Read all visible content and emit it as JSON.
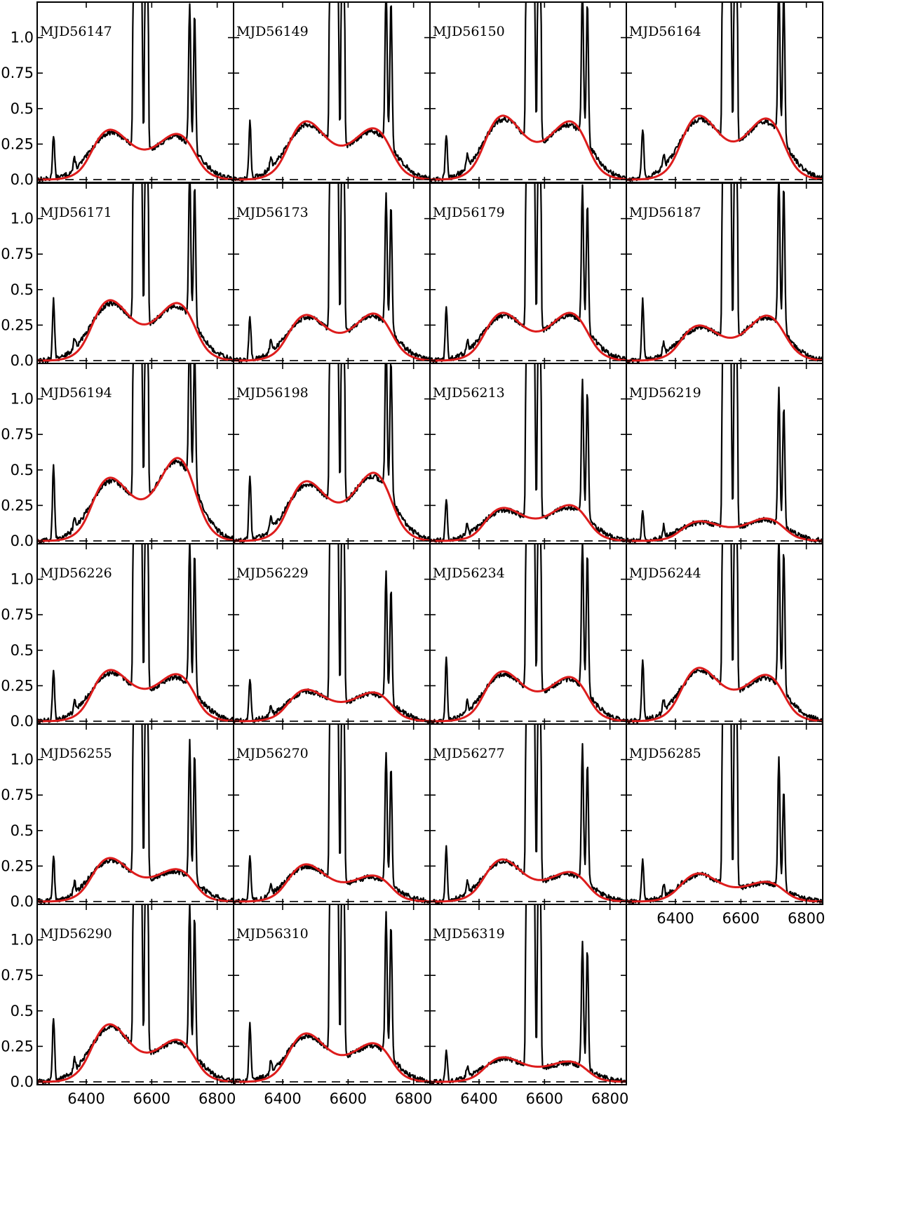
{
  "chart_data": {
    "type": "line",
    "layout": "small-multiples",
    "xlim": [
      6250,
      6850
    ],
    "ylim": [
      -0.02,
      1.25
    ],
    "xticks": [
      6400,
      6600,
      6800
    ],
    "xtick_labels": [
      "6400",
      "6600",
      "6800"
    ],
    "yticks": [
      0.0,
      0.25,
      0.5,
      0.75,
      1.0
    ],
    "ytick_labels": [
      "0.0",
      "0.25",
      "0.5",
      "0.75",
      "1.0"
    ],
    "zero_line": "dashed",
    "colors": {
      "observed": "#000000",
      "fit": "#dd1c1c"
    },
    "panels": [
      {
        "label": "MJD56147",
        "blue_peak": 0.27,
        "red_peak": 0.24,
        "trough": 0.17,
        "line_6300": 0.31,
        "line_6716": 1.0,
        "line_6731": 0.97
      },
      {
        "label": "MJD56149",
        "blue_peak": 0.32,
        "red_peak": 0.27,
        "trough": 0.19,
        "line_6300": 0.4,
        "line_6716": 1.1,
        "line_6731": 1.05
      },
      {
        "label": "MJD56150",
        "blue_peak": 0.35,
        "red_peak": 0.31,
        "trough": 0.21,
        "line_6300": 0.3,
        "line_6716": 1.05,
        "line_6731": 1.0
      },
      {
        "label": "MJD56164",
        "blue_peak": 0.35,
        "red_peak": 0.33,
        "trough": 0.21,
        "line_6300": 0.35,
        "line_6716": 1.08,
        "line_6731": 1.05
      },
      {
        "label": "MJD56171",
        "blue_peak": 0.33,
        "red_peak": 0.31,
        "trough": 0.2,
        "line_6300": 0.42,
        "line_6716": 1.05,
        "line_6731": 0.98
      },
      {
        "label": "MJD56173",
        "blue_peak": 0.25,
        "red_peak": 0.26,
        "trough": 0.15,
        "line_6300": 0.3,
        "line_6716": 0.93,
        "line_6731": 0.88
      },
      {
        "label": "MJD56179",
        "blue_peak": 0.26,
        "red_peak": 0.26,
        "trough": 0.16,
        "line_6300": 0.38,
        "line_6716": 0.97,
        "line_6731": 0.9
      },
      {
        "label": "MJD56187",
        "blue_peak": 0.19,
        "red_peak": 0.26,
        "trough": 0.12,
        "line_6300": 0.42,
        "line_6716": 1.08,
        "line_6731": 1.03
      },
      {
        "label": "MJD56194",
        "blue_peak": 0.34,
        "red_peak": 0.48,
        "trough": 0.22,
        "line_6300": 0.52,
        "line_6716": 1.2,
        "line_6731": 1.0
      },
      {
        "label": "MJD56198",
        "blue_peak": 0.32,
        "red_peak": 0.38,
        "trough": 0.21,
        "line_6300": 0.45,
        "line_6716": 1.05,
        "line_6731": 0.98
      },
      {
        "label": "MJD56213",
        "blue_peak": 0.17,
        "red_peak": 0.19,
        "trough": 0.13,
        "line_6300": 0.3,
        "line_6716": 0.95,
        "line_6731": 0.9
      },
      {
        "label": "MJD56219",
        "blue_peak": 0.1,
        "red_peak": 0.12,
        "trough": 0.08,
        "line_6300": 0.2,
        "line_6716": 0.95,
        "line_6731": 0.85
      },
      {
        "label": "MJD56226",
        "blue_peak": 0.27,
        "red_peak": 0.24,
        "trough": 0.19,
        "line_6300": 0.35,
        "line_6716": 1.03,
        "line_6731": 0.98
      },
      {
        "label": "MJD56229",
        "blue_peak": 0.17,
        "red_peak": 0.15,
        "trough": 0.11,
        "line_6300": 0.3,
        "line_6716": 0.9,
        "line_6731": 0.82
      },
      {
        "label": "MJD56234",
        "blue_peak": 0.27,
        "red_peak": 0.23,
        "trough": 0.17,
        "line_6300": 0.43,
        "line_6716": 1.05,
        "line_6731": 1.0
      },
      {
        "label": "MJD56244",
        "blue_peak": 0.29,
        "red_peak": 0.24,
        "trough": 0.18,
        "line_6300": 0.42,
        "line_6716": 1.07,
        "line_6731": 1.0
      },
      {
        "label": "MJD56255",
        "blue_peak": 0.24,
        "red_peak": 0.16,
        "trough": 0.14,
        "line_6300": 0.32,
        "line_6716": 0.96,
        "line_6731": 0.92
      },
      {
        "label": "MJD56270",
        "blue_peak": 0.21,
        "red_peak": 0.13,
        "trough": 0.11,
        "line_6300": 0.3,
        "line_6716": 0.92,
        "line_6731": 0.83
      },
      {
        "label": "MJD56277",
        "blue_peak": 0.24,
        "red_peak": 0.15,
        "trough": 0.12,
        "line_6300": 0.38,
        "line_6716": 0.95,
        "line_6731": 0.85
      },
      {
        "label": "MJD56285",
        "blue_peak": 0.16,
        "red_peak": 0.1,
        "trough": 0.08,
        "line_6300": 0.3,
        "line_6716": 0.93,
        "line_6731": 0.7
      },
      {
        "label": "MJD56290",
        "blue_peak": 0.33,
        "red_peak": 0.22,
        "trough": 0.16,
        "line_6300": 0.45,
        "line_6716": 1.03,
        "line_6731": 0.98
      },
      {
        "label": "MJD56310",
        "blue_peak": 0.27,
        "red_peak": 0.2,
        "trough": 0.15,
        "line_6300": 0.4,
        "line_6716": 0.98,
        "line_6731": 0.95
      },
      {
        "label": "MJD56319",
        "blue_peak": 0.13,
        "red_peak": 0.1,
        "trough": 0.09,
        "line_6300": 0.22,
        "line_6716": 0.89,
        "line_6731": 0.85
      }
    ]
  }
}
